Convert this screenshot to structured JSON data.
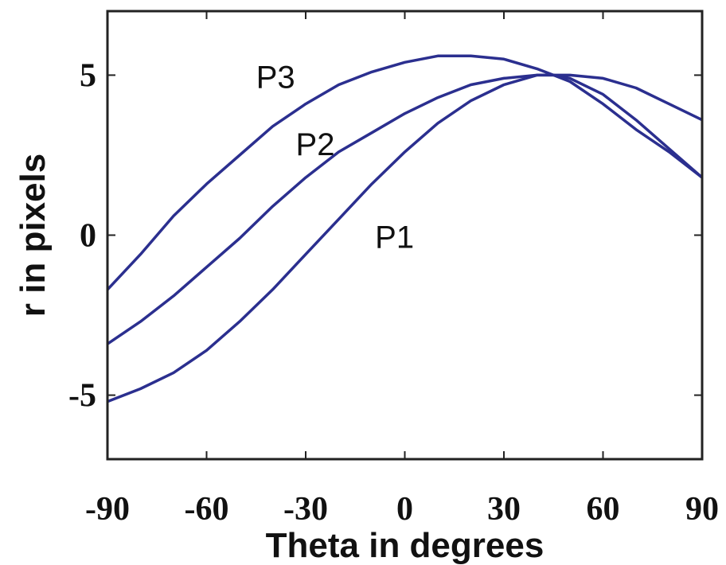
{
  "chart_data": {
    "type": "line",
    "xlabel": "Theta in degrees",
    "ylabel": "r in pixels",
    "xlim": [
      -90,
      90
    ],
    "ylim": [
      -7,
      7
    ],
    "xticks": [
      -90,
      -60,
      -30,
      0,
      30,
      60,
      90
    ],
    "yticks": [
      -5,
      0,
      5
    ],
    "series_color": "#2b2f8f",
    "x": [
      -90,
      -80,
      -70,
      -60,
      -50,
      -40,
      -30,
      -20,
      -10,
      0,
      10,
      20,
      30,
      40,
      45,
      50,
      60,
      70,
      80,
      90
    ],
    "series": [
      {
        "name": "P1",
        "values": [
          -5.2,
          -4.8,
          -4.3,
          -3.6,
          -2.7,
          -1.7,
          -0.6,
          0.5,
          1.6,
          2.6,
          3.5,
          4.2,
          4.7,
          5.0,
          5.0,
          4.9,
          4.4,
          3.6,
          2.7,
          1.8
        ]
      },
      {
        "name": "P2",
        "values": [
          -3.4,
          -2.7,
          -1.9,
          -1.0,
          -0.1,
          0.9,
          1.8,
          2.6,
          3.2,
          3.8,
          4.3,
          4.7,
          4.9,
          5.0,
          5.0,
          5.0,
          4.9,
          4.6,
          4.1,
          3.6
        ]
      },
      {
        "name": "P3",
        "values": [
          -1.7,
          -0.6,
          0.6,
          1.6,
          2.5,
          3.4,
          4.1,
          4.7,
          5.1,
          5.4,
          5.6,
          5.6,
          5.5,
          5.2,
          5.0,
          4.8,
          4.1,
          3.3,
          2.6,
          1.8
        ]
      }
    ],
    "annotations": [
      "P3",
      "P2",
      "P1"
    ]
  }
}
